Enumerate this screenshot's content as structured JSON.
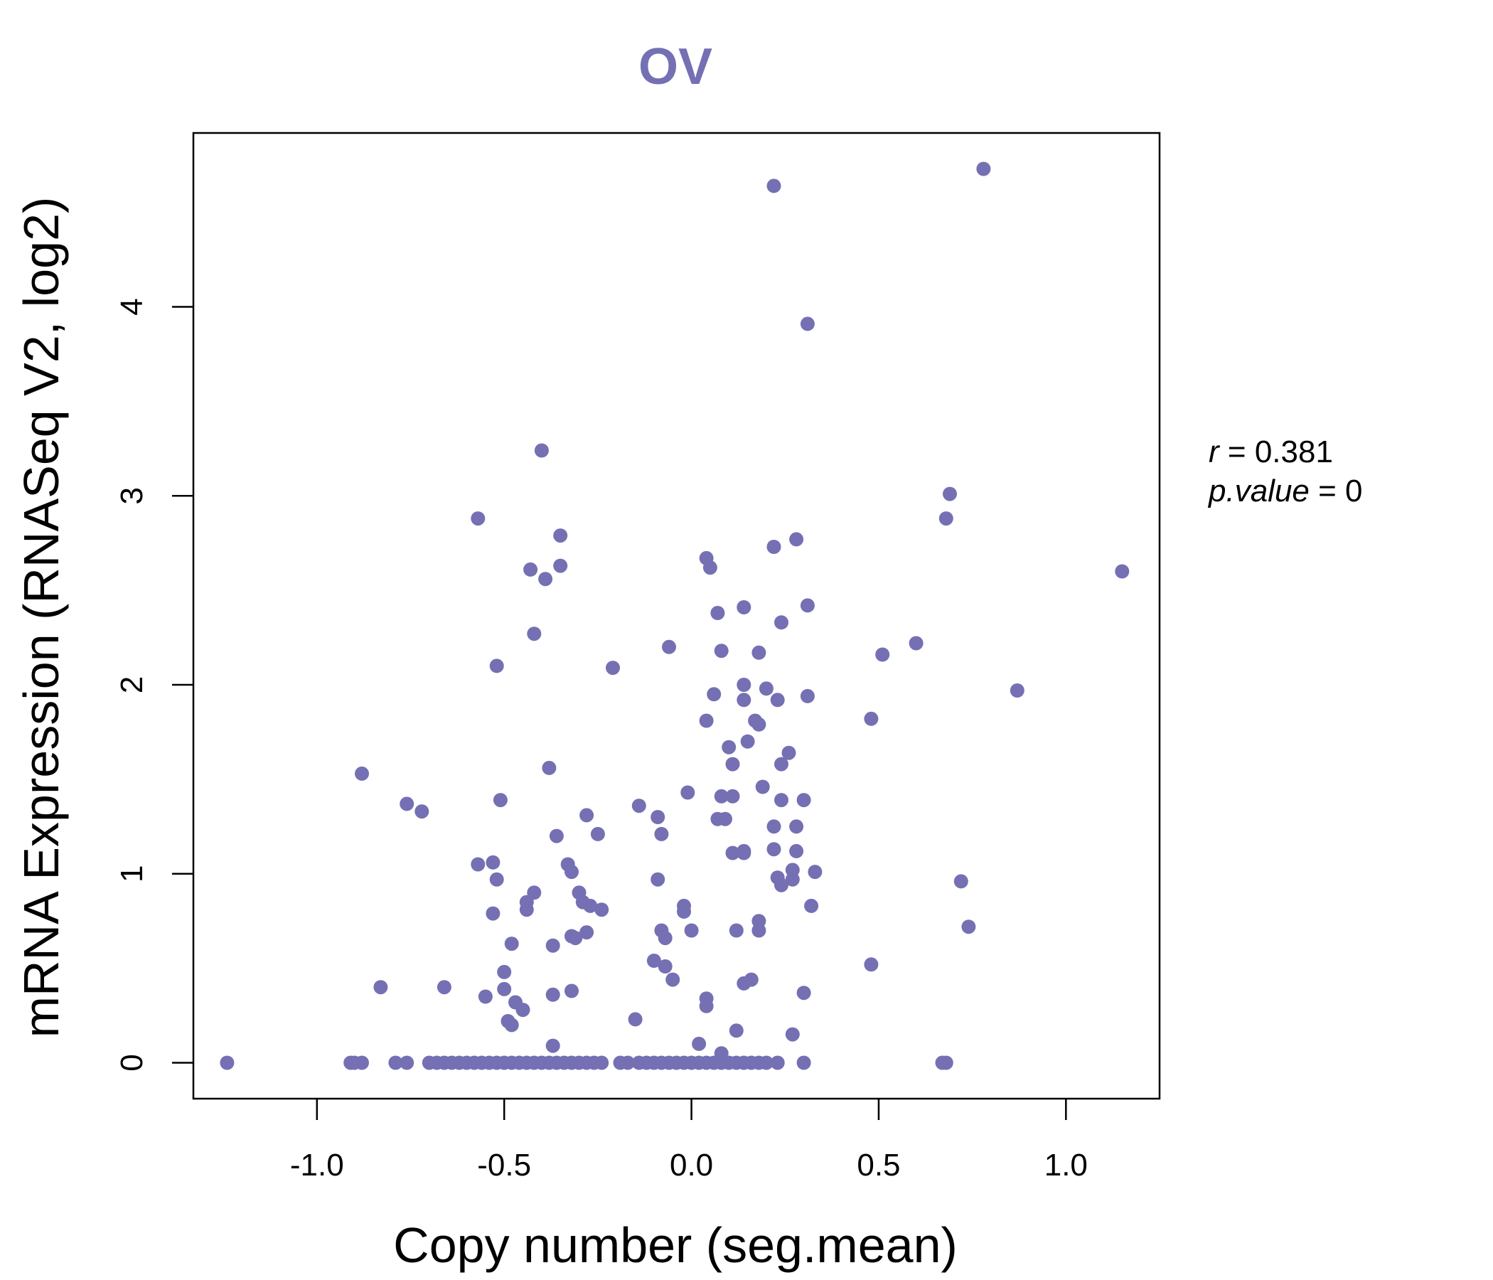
{
  "chart_data": {
    "type": "scatter",
    "title": "OV",
    "xlabel": "Copy number (seg.mean)",
    "ylabel": "mRNA Expression (RNASeq V2, log2)",
    "xlim": [
      -1.33,
      1.25
    ],
    "ylim": [
      -0.19,
      4.92
    ],
    "x_ticks": [
      "-1.0",
      "-0.5",
      "0.0",
      "0.5",
      "1.0"
    ],
    "x_tick_values": [
      -1.0,
      -0.5,
      0.0,
      0.5,
      1.0
    ],
    "y_ticks": [
      "0",
      "1",
      "2",
      "3",
      "4"
    ],
    "y_tick_values": [
      0,
      1,
      2,
      3,
      4
    ],
    "grid": false,
    "point_color": "#7570b3",
    "annotation": {
      "r_label": "r",
      "r_value": "0.381",
      "p_label": "p.value",
      "p_value": "0"
    },
    "points": [
      {
        "x": -1.24,
        "y": 0.0
      },
      {
        "x": -0.91,
        "y": 0.0
      },
      {
        "x": -0.9,
        "y": 0.0
      },
      {
        "x": -0.88,
        "y": 0.0
      },
      {
        "x": -0.79,
        "y": 0.0
      },
      {
        "x": -0.76,
        "y": 0.0
      },
      {
        "x": -0.7,
        "y": 0.0
      },
      {
        "x": -0.68,
        "y": 0.0
      },
      {
        "x": -0.66,
        "y": 0.0
      },
      {
        "x": -0.64,
        "y": 0.0
      },
      {
        "x": -0.62,
        "y": 0.0
      },
      {
        "x": -0.6,
        "y": 0.0
      },
      {
        "x": -0.58,
        "y": 0.0
      },
      {
        "x": -0.56,
        "y": 0.0
      },
      {
        "x": -0.54,
        "y": 0.0
      },
      {
        "x": -0.52,
        "y": 0.0
      },
      {
        "x": -0.5,
        "y": 0.0
      },
      {
        "x": -0.48,
        "y": 0.0
      },
      {
        "x": -0.46,
        "y": 0.0
      },
      {
        "x": -0.44,
        "y": 0.0
      },
      {
        "x": -0.42,
        "y": 0.0
      },
      {
        "x": -0.4,
        "y": 0.0
      },
      {
        "x": -0.38,
        "y": 0.0
      },
      {
        "x": -0.36,
        "y": 0.0
      },
      {
        "x": -0.34,
        "y": 0.0
      },
      {
        "x": -0.32,
        "y": 0.0
      },
      {
        "x": -0.3,
        "y": 0.0
      },
      {
        "x": -0.28,
        "y": 0.0
      },
      {
        "x": -0.26,
        "y": 0.0
      },
      {
        "x": -0.24,
        "y": 0.0
      },
      {
        "x": -0.19,
        "y": 0.0
      },
      {
        "x": -0.17,
        "y": 0.0
      },
      {
        "x": -0.14,
        "y": 0.0
      },
      {
        "x": -0.12,
        "y": 0.0
      },
      {
        "x": -0.1,
        "y": 0.0
      },
      {
        "x": -0.08,
        "y": 0.0
      },
      {
        "x": -0.06,
        "y": 0.0
      },
      {
        "x": -0.04,
        "y": 0.0
      },
      {
        "x": -0.02,
        "y": 0.0
      },
      {
        "x": 0.0,
        "y": 0.0
      },
      {
        "x": 0.02,
        "y": 0.0
      },
      {
        "x": 0.04,
        "y": 0.0
      },
      {
        "x": 0.06,
        "y": 0.0
      },
      {
        "x": 0.08,
        "y": 0.0
      },
      {
        "x": 0.1,
        "y": 0.0
      },
      {
        "x": 0.12,
        "y": 0.0
      },
      {
        "x": 0.14,
        "y": 0.0
      },
      {
        "x": 0.16,
        "y": 0.0
      },
      {
        "x": 0.18,
        "y": 0.0
      },
      {
        "x": 0.2,
        "y": 0.0
      },
      {
        "x": 0.23,
        "y": 0.0
      },
      {
        "x": 0.3,
        "y": 0.0
      },
      {
        "x": 0.67,
        "y": 0.0
      },
      {
        "x": 0.68,
        "y": 0.0
      },
      {
        "x": -0.37,
        "y": 0.09
      },
      {
        "x": 0.02,
        "y": 0.1
      },
      {
        "x": 0.08,
        "y": 0.05
      },
      {
        "x": 0.12,
        "y": 0.17
      },
      {
        "x": 0.27,
        "y": 0.15
      },
      {
        "x": -0.49,
        "y": 0.22
      },
      {
        "x": -0.48,
        "y": 0.2
      },
      {
        "x": -0.15,
        "y": 0.23
      },
      {
        "x": -0.47,
        "y": 0.32
      },
      {
        "x": -0.45,
        "y": 0.28
      },
      {
        "x": -0.55,
        "y": 0.35
      },
      {
        "x": -0.5,
        "y": 0.39
      },
      {
        "x": -0.37,
        "y": 0.36
      },
      {
        "x": -0.32,
        "y": 0.38
      },
      {
        "x": 0.04,
        "y": 0.3
      },
      {
        "x": 0.04,
        "y": 0.34
      },
      {
        "x": 0.14,
        "y": 0.42
      },
      {
        "x": 0.16,
        "y": 0.44
      },
      {
        "x": 0.3,
        "y": 0.37
      },
      {
        "x": -0.83,
        "y": 0.4
      },
      {
        "x": -0.66,
        "y": 0.4
      },
      {
        "x": -0.05,
        "y": 0.44
      },
      {
        "x": -0.5,
        "y": 0.48
      },
      {
        "x": -0.1,
        "y": 0.54
      },
      {
        "x": -0.07,
        "y": 0.51
      },
      {
        "x": 0.48,
        "y": 0.52
      },
      {
        "x": -0.48,
        "y": 0.63
      },
      {
        "x": -0.37,
        "y": 0.62
      },
      {
        "x": -0.32,
        "y": 0.67
      },
      {
        "x": -0.31,
        "y": 0.66
      },
      {
        "x": -0.28,
        "y": 0.69
      },
      {
        "x": -0.07,
        "y": 0.66
      },
      {
        "x": -0.08,
        "y": 0.7
      },
      {
        "x": 0.0,
        "y": 0.7
      },
      {
        "x": 0.12,
        "y": 0.7
      },
      {
        "x": 0.18,
        "y": 0.7
      },
      {
        "x": 0.18,
        "y": 0.75
      },
      {
        "x": 0.74,
        "y": 0.72
      },
      {
        "x": -0.53,
        "y": 0.79
      },
      {
        "x": -0.44,
        "y": 0.81
      },
      {
        "x": -0.44,
        "y": 0.85
      },
      {
        "x": -0.42,
        "y": 0.9
      },
      {
        "x": -0.29,
        "y": 0.85
      },
      {
        "x": -0.3,
        "y": 0.9
      },
      {
        "x": -0.27,
        "y": 0.83
      },
      {
        "x": -0.24,
        "y": 0.81
      },
      {
        "x": -0.02,
        "y": 0.8
      },
      {
        "x": -0.02,
        "y": 0.83
      },
      {
        "x": 0.32,
        "y": 0.83
      },
      {
        "x": -0.52,
        "y": 0.97
      },
      {
        "x": -0.09,
        "y": 0.97
      },
      {
        "x": 0.23,
        "y": 0.98
      },
      {
        "x": 0.24,
        "y": 0.94
      },
      {
        "x": 0.27,
        "y": 0.97
      },
      {
        "x": 0.27,
        "y": 1.02
      },
      {
        "x": 0.33,
        "y": 1.01
      },
      {
        "x": 0.72,
        "y": 0.96
      },
      {
        "x": -0.57,
        "y": 1.05
      },
      {
        "x": -0.53,
        "y": 1.06
      },
      {
        "x": -0.33,
        "y": 1.05
      },
      {
        "x": -0.32,
        "y": 1.01
      },
      {
        "x": 0.11,
        "y": 1.11
      },
      {
        "x": 0.14,
        "y": 1.11
      },
      {
        "x": 0.14,
        "y": 1.12
      },
      {
        "x": 0.22,
        "y": 1.13
      },
      {
        "x": 0.28,
        "y": 1.12
      },
      {
        "x": -0.36,
        "y": 1.2
      },
      {
        "x": -0.25,
        "y": 1.21
      },
      {
        "x": -0.08,
        "y": 1.21
      },
      {
        "x": -0.28,
        "y": 1.31
      },
      {
        "x": -0.09,
        "y": 1.3
      },
      {
        "x": -0.14,
        "y": 1.36
      },
      {
        "x": 0.07,
        "y": 1.29
      },
      {
        "x": 0.09,
        "y": 1.29
      },
      {
        "x": 0.22,
        "y": 1.25
      },
      {
        "x": 0.28,
        "y": 1.25
      },
      {
        "x": -0.76,
        "y": 1.37
      },
      {
        "x": -0.72,
        "y": 1.33
      },
      {
        "x": -0.51,
        "y": 1.39
      },
      {
        "x": -0.01,
        "y": 1.43
      },
      {
        "x": 0.08,
        "y": 1.41
      },
      {
        "x": 0.11,
        "y": 1.41
      },
      {
        "x": 0.24,
        "y": 1.39
      },
      {
        "x": 0.3,
        "y": 1.39
      },
      {
        "x": 0.19,
        "y": 1.46
      },
      {
        "x": -0.88,
        "y": 1.53
      },
      {
        "x": -0.38,
        "y": 1.56
      },
      {
        "x": 0.11,
        "y": 1.58
      },
      {
        "x": 0.24,
        "y": 1.58
      },
      {
        "x": 0.26,
        "y": 1.64
      },
      {
        "x": 0.1,
        "y": 1.67
      },
      {
        "x": 0.15,
        "y": 1.7
      },
      {
        "x": 0.04,
        "y": 1.81
      },
      {
        "x": 0.17,
        "y": 1.81
      },
      {
        "x": 0.18,
        "y": 1.79
      },
      {
        "x": 0.48,
        "y": 1.82
      },
      {
        "x": 0.06,
        "y": 1.95
      },
      {
        "x": 0.14,
        "y": 1.92
      },
      {
        "x": 0.14,
        "y": 2.0
      },
      {
        "x": 0.2,
        "y": 1.98
      },
      {
        "x": 0.23,
        "y": 1.92
      },
      {
        "x": 0.31,
        "y": 1.94
      },
      {
        "x": 0.87,
        "y": 1.97
      },
      {
        "x": -0.52,
        "y": 2.1
      },
      {
        "x": -0.21,
        "y": 2.09
      },
      {
        "x": -0.06,
        "y": 2.2
      },
      {
        "x": 0.08,
        "y": 2.18
      },
      {
        "x": 0.18,
        "y": 2.17
      },
      {
        "x": 0.51,
        "y": 2.16
      },
      {
        "x": 0.6,
        "y": 2.22
      },
      {
        "x": -0.42,
        "y": 2.27
      },
      {
        "x": 0.24,
        "y": 2.33
      },
      {
        "x": 0.07,
        "y": 2.38
      },
      {
        "x": 0.14,
        "y": 2.41
      },
      {
        "x": 0.31,
        "y": 2.42
      },
      {
        "x": -0.43,
        "y": 2.61
      },
      {
        "x": -0.39,
        "y": 2.56
      },
      {
        "x": -0.35,
        "y": 2.63
      },
      {
        "x": 0.04,
        "y": 2.67
      },
      {
        "x": 0.05,
        "y": 2.62
      },
      {
        "x": 1.15,
        "y": 2.6
      },
      {
        "x": 0.22,
        "y": 2.73
      },
      {
        "x": 0.28,
        "y": 2.77
      },
      {
        "x": -0.35,
        "y": 2.79
      },
      {
        "x": -0.57,
        "y": 2.88
      },
      {
        "x": 0.68,
        "y": 2.88
      },
      {
        "x": 0.69,
        "y": 3.01
      },
      {
        "x": -0.4,
        "y": 3.24
      },
      {
        "x": 0.31,
        "y": 3.91
      },
      {
        "x": 0.22,
        "y": 4.64
      },
      {
        "x": 0.78,
        "y": 4.73
      }
    ]
  }
}
